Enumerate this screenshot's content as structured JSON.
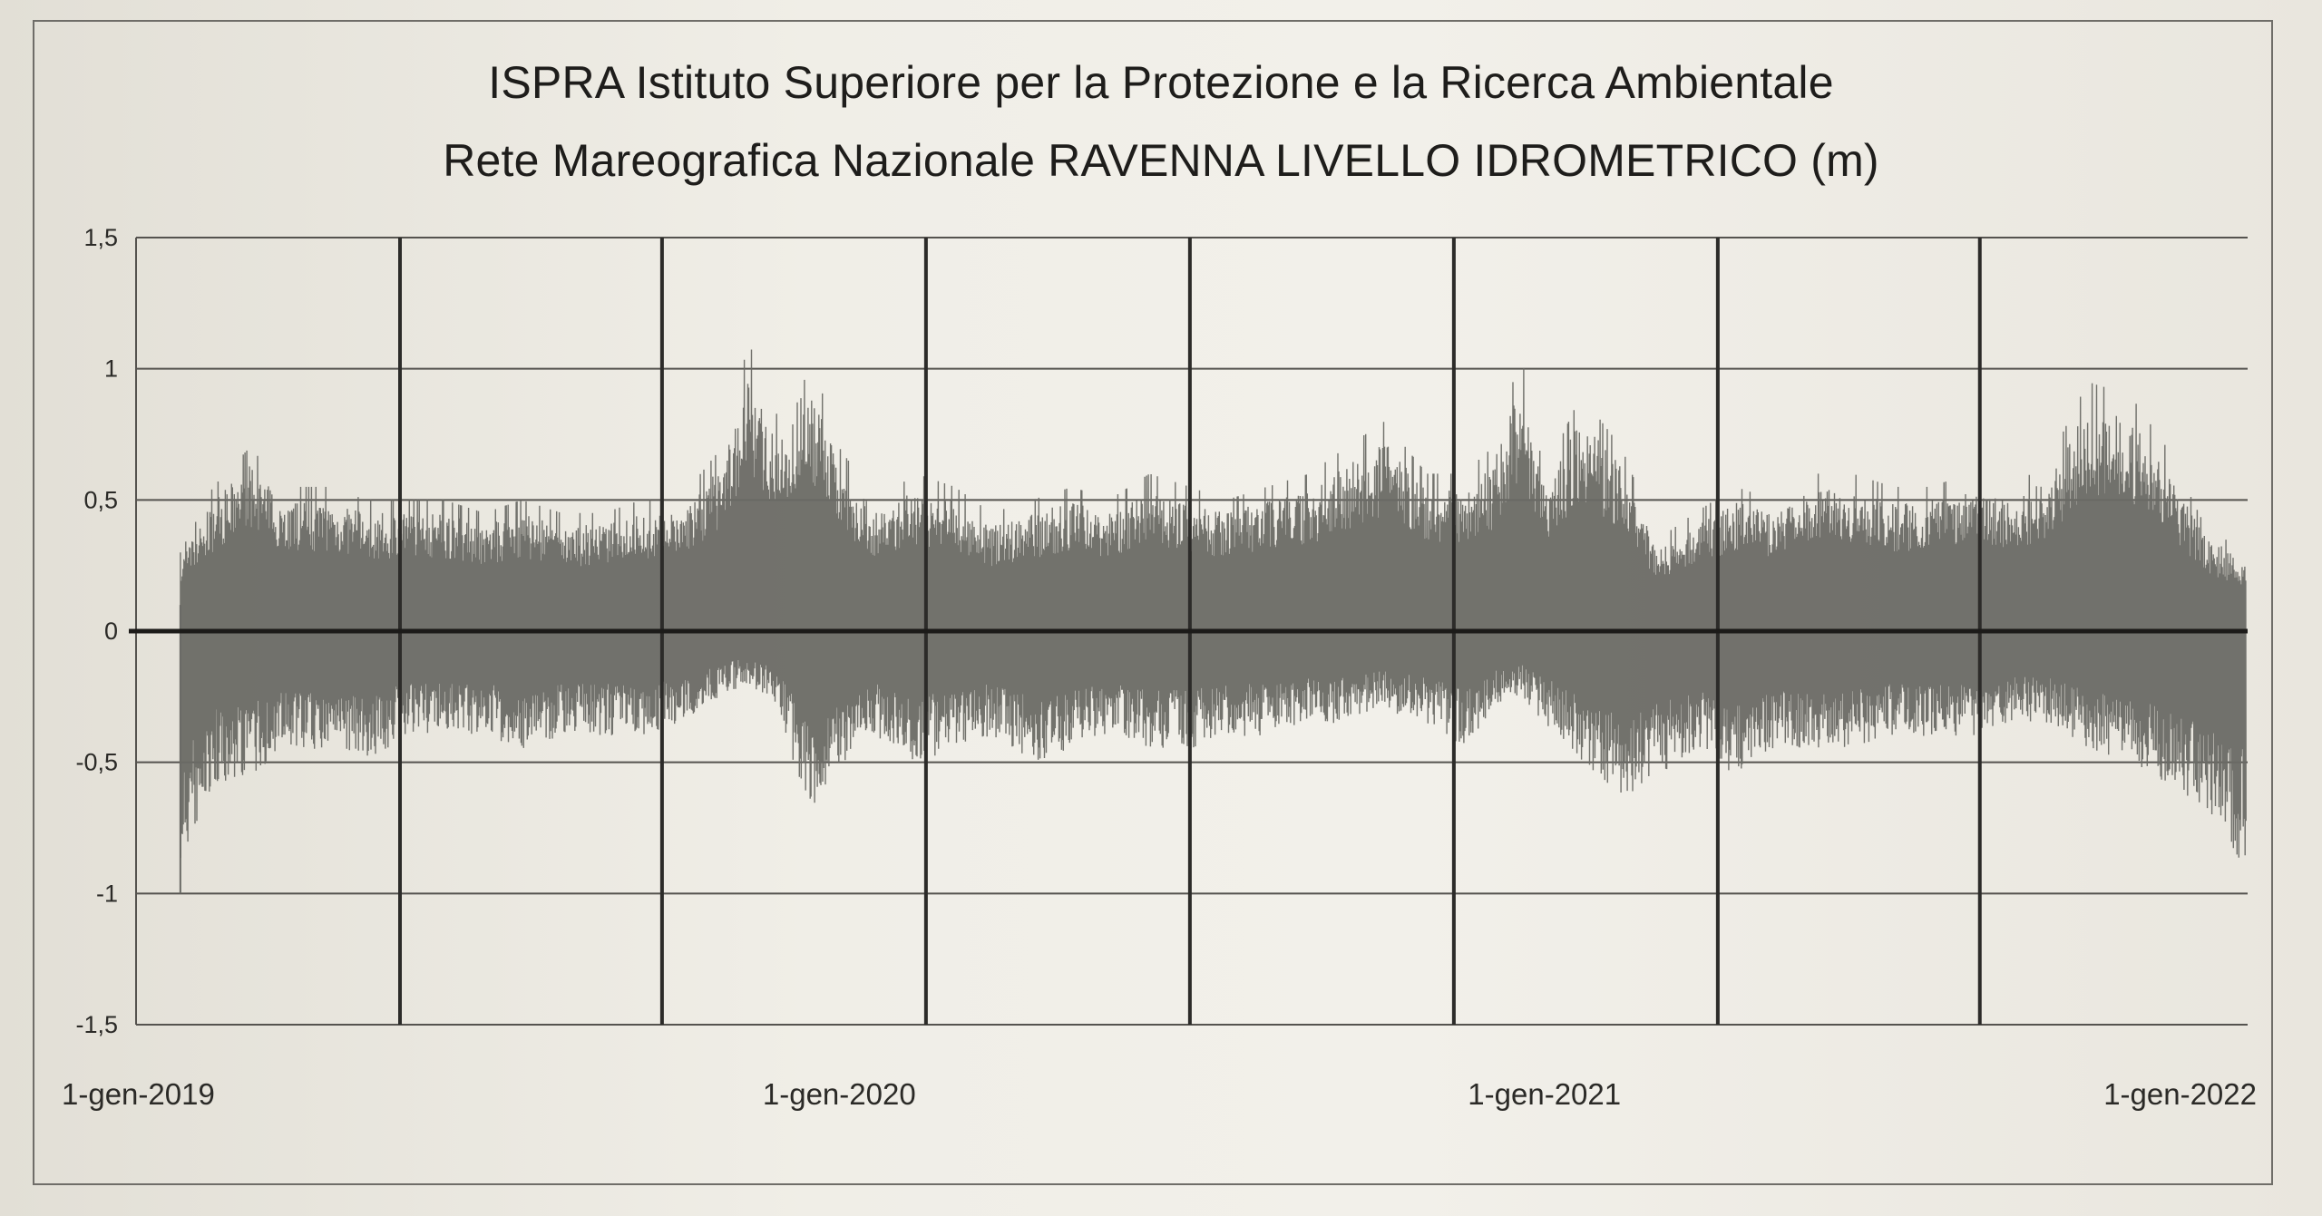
{
  "chart_data": {
    "type": "line",
    "title": "ISPRA Istituto Superiore per la Protezione e la Ricerca Ambientale",
    "subtitle": "Rete Mareografica Nazionale RAVENNA LIVELLO IDROMETRICO (m)",
    "xlabel": "",
    "ylabel": "",
    "xlim": [
      "2019-01-01",
      "2022-01-01"
    ],
    "ylim": [
      -1.5,
      1.5
    ],
    "y_ticks": [
      "1,5",
      "1",
      "0,5",
      "0",
      "-0,5",
      "-1",
      "-1,5"
    ],
    "x_ticks": [
      "1-gen-2019",
      "1-gen-2020",
      "1-gen-2021",
      "1-gen-2022"
    ],
    "grid": "on",
    "legend": "none",
    "series_color": "#6a6a65",
    "series": [
      {
        "x": [
          "2019-01-24",
          "2019-02-10",
          "2019-03-01",
          "2019-03-20",
          "2019-04-10",
          "2019-05-01",
          "2019-05-20",
          "2019-06-10",
          "2019-07-01",
          "2019-07-20",
          "2019-08-10",
          "2019-09-01",
          "2019-09-20",
          "2019-10-10",
          "2019-11-01",
          "2019-11-15",
          "2019-12-01",
          "2019-12-15",
          "2020-01-01",
          "2020-01-20",
          "2020-02-10",
          "2020-03-01",
          "2020-03-20",
          "2020-04-10",
          "2020-05-01",
          "2020-05-20",
          "2020-06-10",
          "2020-07-01",
          "2020-07-20",
          "2020-08-10",
          "2020-09-01",
          "2020-09-20",
          "2020-10-10",
          "2020-11-01",
          "2020-11-20",
          "2020-12-05",
          "2020-12-20",
          "2021-01-01",
          "2021-01-20",
          "2021-02-10",
          "2021-03-01",
          "2021-03-20",
          "2021-04-10",
          "2021-05-01",
          "2021-05-20",
          "2021-06-10",
          "2021-07-01",
          "2021-07-20",
          "2021-08-10",
          "2021-09-01",
          "2021-09-20",
          "2021-10-10",
          "2021-11-01",
          "2021-11-20",
          "2021-12-10",
          "2021-12-31"
        ],
        "max": [
          0.3,
          0.55,
          0.7,
          0.55,
          0.55,
          0.5,
          0.5,
          0.5,
          0.45,
          0.5,
          0.45,
          0.45,
          0.5,
          0.5,
          0.7,
          1.1,
          0.8,
          1.1,
          0.7,
          0.5,
          0.6,
          0.55,
          0.45,
          0.5,
          0.55,
          0.5,
          0.6,
          0.55,
          0.5,
          0.55,
          0.6,
          0.7,
          0.8,
          0.6,
          0.6,
          0.7,
          1.05,
          0.6,
          0.9,
          0.7,
          0.35,
          0.45,
          0.55,
          0.5,
          0.6,
          0.6,
          0.55,
          0.55,
          0.6,
          0.55,
          0.65,
          0.95,
          0.9,
          0.7,
          0.4,
          0.3
        ],
        "min": [
          -0.9,
          -0.6,
          -0.55,
          -0.45,
          -0.45,
          -0.5,
          -0.4,
          -0.4,
          -0.4,
          -0.45,
          -0.4,
          -0.4,
          -0.4,
          -0.35,
          -0.25,
          -0.2,
          -0.3,
          -0.7,
          -0.55,
          -0.4,
          -0.5,
          -0.45,
          -0.4,
          -0.5,
          -0.45,
          -0.4,
          -0.45,
          -0.45,
          -0.4,
          -0.4,
          -0.35,
          -0.35,
          -0.3,
          -0.35,
          -0.45,
          -0.3,
          -0.25,
          -0.35,
          -0.5,
          -0.65,
          -0.55,
          -0.45,
          -0.55,
          -0.45,
          -0.45,
          -0.45,
          -0.4,
          -0.4,
          -0.4,
          -0.35,
          -0.35,
          -0.45,
          -0.5,
          -0.6,
          -0.7,
          -0.9
        ]
      }
    ]
  }
}
